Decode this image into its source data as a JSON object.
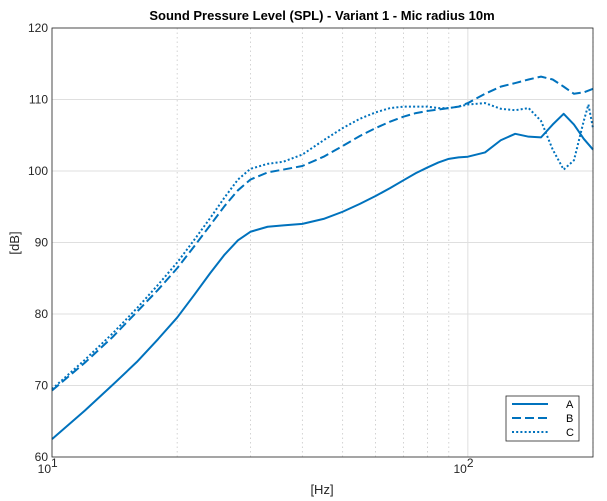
{
  "chart_data": {
    "type": "line",
    "title": "Sound Pressure Level (SPL) - Variant 1 - Mic radius 10m",
    "xlabel": "[Hz]",
    "ylabel": "[dB]",
    "xscale": "log",
    "xlim": [
      10,
      200
    ],
    "ylim": [
      60,
      120
    ],
    "xticks": [
      {
        "value": 10,
        "base": "10",
        "exp": "1"
      },
      {
        "value": 100,
        "base": "10",
        "exp": "2"
      }
    ],
    "yticks": [
      60,
      70,
      80,
      90,
      100,
      110,
      120
    ],
    "grid": true,
    "legend_position": "bottom-right",
    "color": "#0072BD",
    "series": [
      {
        "name": "A",
        "style": "solid",
        "x": [
          10,
          12,
          14,
          16,
          18,
          20,
          22,
          24,
          26,
          28,
          30,
          33,
          36,
          40,
          45,
          50,
          55,
          60,
          65,
          70,
          75,
          80,
          85,
          90,
          95,
          100,
          110,
          120,
          130,
          140,
          150,
          160,
          170,
          180,
          190,
          200
        ],
        "y": [
          62.5,
          66.5,
          70.1,
          73.3,
          76.5,
          79.5,
          82.7,
          85.7,
          88.3,
          90.3,
          91.5,
          92.2,
          92.4,
          92.6,
          93.3,
          94.3,
          95.4,
          96.5,
          97.6,
          98.7,
          99.7,
          100.5,
          101.2,
          101.7,
          101.9,
          102.0,
          102.6,
          104.3,
          105.2,
          104.8,
          104.7,
          106.5,
          108.0,
          106.5,
          104.5,
          103.0
        ]
      },
      {
        "name": "B",
        "style": "dash",
        "x": [
          10,
          12,
          14,
          16,
          18,
          20,
          22,
          24,
          26,
          28,
          30,
          33,
          36,
          40,
          45,
          50,
          55,
          60,
          65,
          70,
          75,
          80,
          85,
          90,
          95,
          100,
          110,
          120,
          130,
          140,
          150,
          160,
          170,
          180,
          190,
          200
        ],
        "y": [
          69.3,
          73.2,
          76.8,
          80.3,
          83.4,
          86.4,
          89.5,
          92.4,
          95.1,
          97.3,
          98.8,
          99.8,
          100.2,
          100.7,
          102.0,
          103.5,
          104.9,
          106.0,
          106.9,
          107.6,
          108.1,
          108.4,
          108.6,
          108.8,
          109.0,
          109.5,
          110.8,
          111.8,
          112.3,
          112.8,
          113.2,
          112.8,
          111.8,
          110.8,
          111.0,
          111.5
        ]
      },
      {
        "name": "C",
        "style": "dot",
        "x": [
          10,
          12,
          14,
          16,
          18,
          20,
          22,
          24,
          26,
          28,
          30,
          33,
          36,
          40,
          45,
          50,
          55,
          60,
          65,
          70,
          75,
          80,
          85,
          90,
          95,
          100,
          110,
          120,
          130,
          140,
          150,
          160,
          170,
          180,
          190,
          195,
          200
        ],
        "y": [
          69.5,
          73.6,
          77.3,
          80.8,
          84.1,
          87.2,
          90.4,
          93.4,
          96.3,
          98.8,
          100.3,
          101.0,
          101.3,
          102.3,
          104.3,
          106.0,
          107.3,
          108.2,
          108.8,
          109.0,
          109.0,
          109.0,
          108.8,
          108.8,
          109.0,
          109.3,
          109.5,
          108.7,
          108.5,
          108.8,
          107.0,
          103.0,
          100.2,
          101.5,
          107.0,
          109.3,
          106.0
        ]
      }
    ]
  }
}
